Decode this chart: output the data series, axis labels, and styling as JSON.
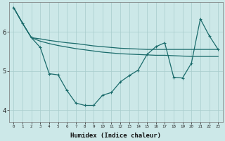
{
  "xlabel": "Humidex (Indice chaleur)",
  "bg_color": "#cce8e8",
  "plot_bg_color": "#cce8e8",
  "grid_color": "#a8cccc",
  "line_color": "#1a6b6b",
  "xlim": [
    0,
    23
  ],
  "ylim": [
    3.7,
    6.75
  ],
  "yticks": [
    4,
    5,
    6
  ],
  "xticks": [
    0,
    1,
    2,
    3,
    4,
    5,
    6,
    7,
    8,
    9,
    10,
    11,
    12,
    13,
    14,
    15,
    16,
    17,
    18,
    19,
    20,
    21,
    22,
    23
  ],
  "series1_y": [
    6.62,
    6.22,
    5.85,
    5.82,
    5.78,
    5.75,
    5.72,
    5.7,
    5.67,
    5.64,
    5.62,
    5.6,
    5.58,
    5.57,
    5.56,
    5.55,
    5.55,
    5.55,
    5.55,
    5.55,
    5.55,
    5.55,
    5.55,
    5.55
  ],
  "series2_y": [
    6.62,
    6.22,
    5.85,
    5.76,
    5.7,
    5.65,
    5.61,
    5.57,
    5.54,
    5.51,
    5.48,
    5.46,
    5.44,
    5.43,
    5.42,
    5.41,
    5.4,
    5.4,
    5.39,
    5.38,
    5.37,
    5.37,
    5.37,
    5.37
  ],
  "series3_y": [
    6.62,
    6.22,
    5.85,
    5.6,
    4.93,
    4.9,
    4.5,
    4.18,
    4.12,
    4.12,
    4.38,
    4.45,
    4.72,
    4.88,
    5.02,
    5.42,
    5.62,
    5.72,
    4.84,
    4.82,
    5.2,
    6.33,
    5.9,
    5.55
  ]
}
